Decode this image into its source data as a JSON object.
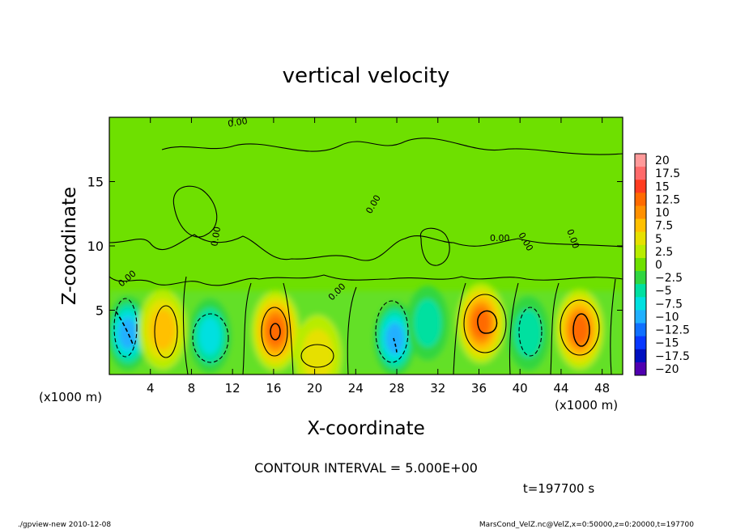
{
  "chart_data": {
    "type": "heatmap",
    "title": "vertical velocity",
    "xlabel": "X-coordinate",
    "ylabel": "Z-coordinate",
    "x_unit_label_left": "(x1000 m)",
    "x_unit_label_right": "(x1000 m)",
    "xlim": [
      0,
      50
    ],
    "ylim": [
      0,
      20
    ],
    "x_ticks": [
      4,
      8,
      12,
      16,
      20,
      24,
      28,
      32,
      36,
      40,
      44,
      48
    ],
    "y_ticks": [
      5,
      10,
      15
    ],
    "colorbar": {
      "labels": [
        "20",
        "17.5",
        "15",
        "12.5",
        "10",
        "7.5",
        "5",
        "2.5",
        "0",
        "-2.5",
        "-5",
        "-7.5",
        "-10",
        "-12.5",
        "-15",
        "-17.5",
        "-20"
      ],
      "colors": [
        "#ff9a9a",
        "#ff6a6a",
        "#ff3c20",
        "#ff6a00",
        "#ff9000",
        "#ffc000",
        "#e6e000",
        "#b8ec00",
        "#6ee000",
        "#30d640",
        "#00e0a0",
        "#00e0e0",
        "#20b0ff",
        "#1070ff",
        "#0838ff",
        "#0010c0",
        "#5000b0"
      ]
    },
    "cells": [
      {
        "x": 1.8,
        "z": 3.2,
        "w": -10
      },
      {
        "x": 5.2,
        "z": 3.5,
        "w": 7.5
      },
      {
        "x": 9.8,
        "z": 3.0,
        "w": -7.5
      },
      {
        "x": 16.2,
        "z": 3.4,
        "w": 12.5
      },
      {
        "x": 20.3,
        "z": 1.5,
        "w": 5
      },
      {
        "x": 27.8,
        "z": 2.8,
        "w": -10
      },
      {
        "x": 31.0,
        "z": 4.0,
        "w": -5
      },
      {
        "x": 36.2,
        "z": 4.0,
        "w": 12.5
      },
      {
        "x": 40.8,
        "z": 3.2,
        "w": -5
      },
      {
        "x": 45.8,
        "z": 3.5,
        "w": 12.5
      }
    ],
    "contour_label": "0.00"
  },
  "contour_interval": "CONTOUR INTERVAL = 5.000E+00",
  "time_label": "t=197700 s",
  "footer": {
    "left": "./gpview-new  2010-12-08",
    "right": "MarsCond_VelZ.nc@VelZ,x=0:50000,z=0:20000,t=197700"
  }
}
